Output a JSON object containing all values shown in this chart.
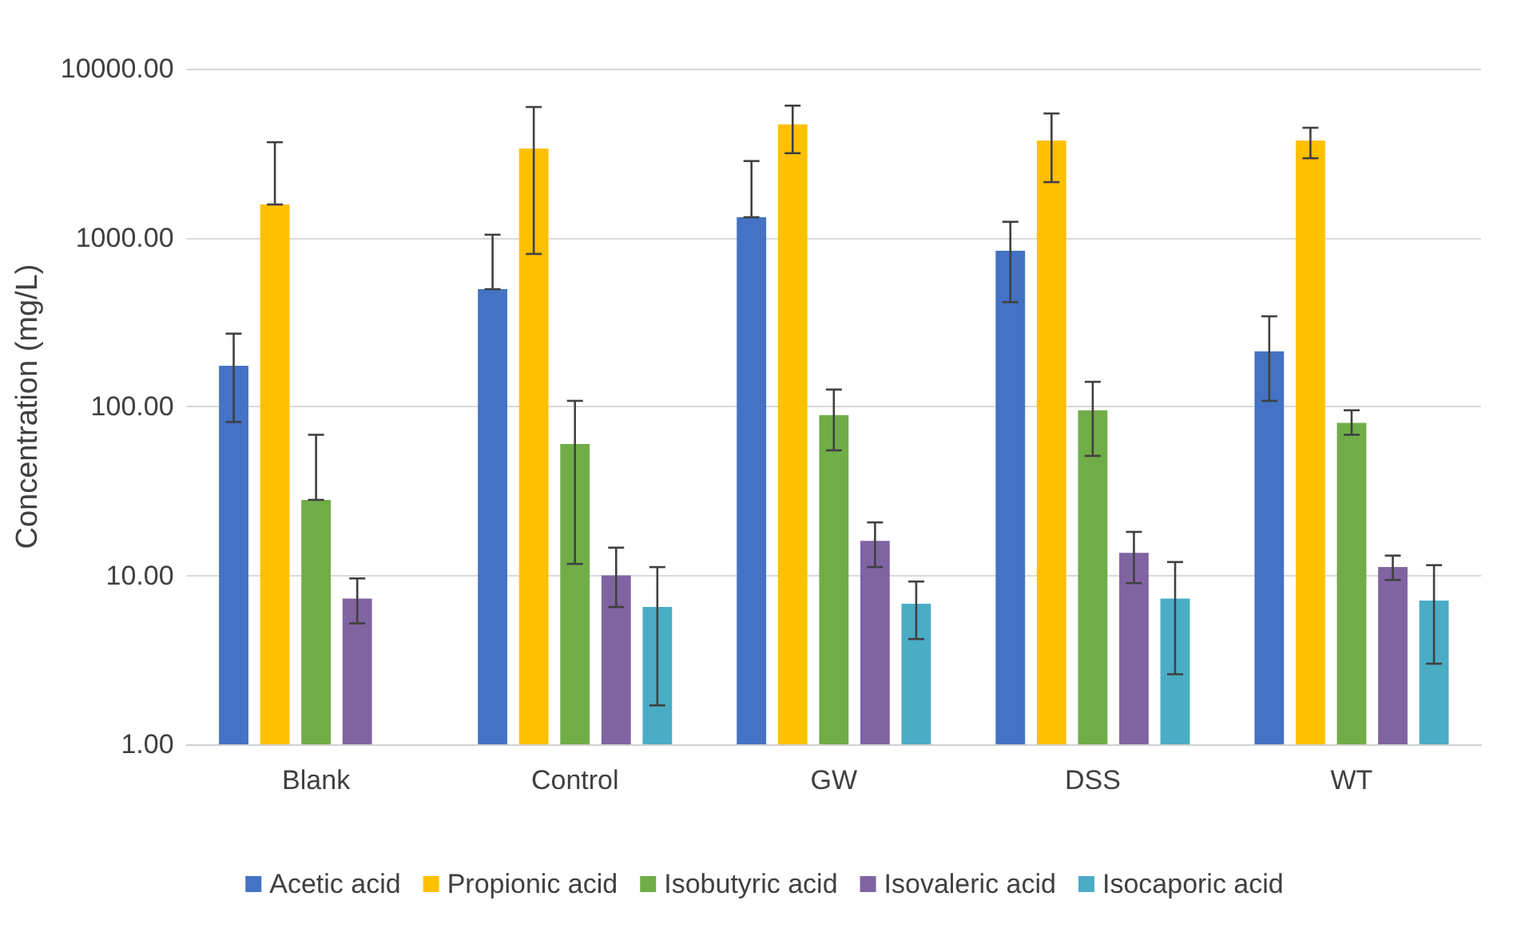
{
  "chart_data": {
    "type": "bar",
    "ylabel": "Concentration (mg/L)",
    "log": true,
    "categories": [
      "Blank",
      "Control",
      "GW",
      "DSS",
      "WT"
    ],
    "series": [
      {
        "name": "Acetic acid",
        "color": "#4472c4",
        "values": [
          174,
          495,
          1320,
          836,
          212
        ],
        "errors": [
          [
            81,
            270
          ],
          [
            495,
            1040
          ],
          [
            1320,
            2840
          ],
          [
            415,
            1240
          ],
          [
            108,
            342
          ]
        ]
      },
      {
        "name": "Propionic acid",
        "color": "#ffc000",
        "values": [
          1570,
          3370,
          4680,
          3750,
          3750
        ],
        "errors": [
          [
            1570,
            3670
          ],
          [
            800,
            5930
          ],
          [
            3160,
            6040
          ],
          [
            2130,
            5430
          ],
          [
            2950,
            4470
          ]
        ]
      },
      {
        "name": "Isobutyric acid",
        "color": "#70ad47",
        "values": [
          28,
          60,
          89,
          95,
          80
        ],
        "errors": [
          [
            28,
            68
          ],
          [
            11.7,
            108
          ],
          [
            55,
            126
          ],
          [
            51,
            140
          ],
          [
            68,
            95
          ]
        ]
      },
      {
        "name": "Isovaleric acid",
        "color": "#8064a2",
        "values": [
          7.3,
          10,
          16,
          13.6,
          11.2
        ],
        "errors": [
          [
            5.2,
            9.6
          ],
          [
            6.5,
            14.6
          ],
          [
            11.2,
            20.6
          ],
          [
            9.0,
            18.1
          ],
          [
            9.4,
            13.1
          ]
        ]
      },
      {
        "name": "Isocaporic acid",
        "color": "#4bacc6",
        "values": [
          null,
          6.5,
          6.8,
          7.3,
          7.1
        ],
        "errors": [
          null,
          [
            1.7,
            11.2
          ],
          [
            4.2,
            9.2
          ],
          [
            2.6,
            12
          ],
          [
            3.0,
            11.5
          ]
        ]
      }
    ],
    "ylim": [
      1,
      10000
    ],
    "yticks": [
      {
        "value": 1,
        "label": "1.00"
      },
      {
        "value": 10,
        "label": "10.00"
      },
      {
        "value": 100,
        "label": "100.00"
      },
      {
        "value": 1000,
        "label": "1000.00"
      },
      {
        "value": 10000,
        "label": "10000.00"
      }
    ],
    "grid": "y",
    "legend": "bottom"
  }
}
